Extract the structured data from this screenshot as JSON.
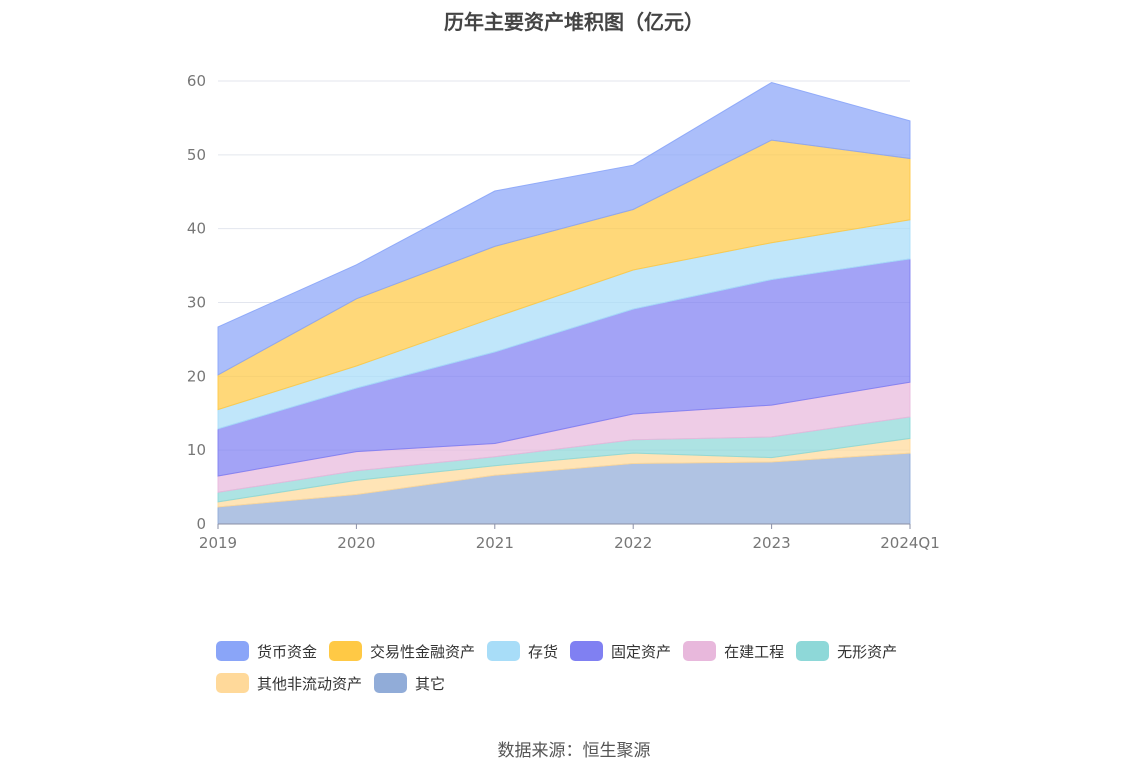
{
  "chart_data": {
    "type": "area",
    "stacked": true,
    "title": "历年主要资产堆积图（亿元）",
    "source": "数据来源：恒生聚源",
    "categories": [
      "2019",
      "2020",
      "2021",
      "2022",
      "2023",
      "2024Q1"
    ],
    "ylim": [
      0,
      60
    ],
    "yticks": [
      0,
      10,
      20,
      30,
      40,
      50,
      60
    ],
    "grid": true,
    "legend_position": "bottom",
    "series": [
      {
        "name": "其它",
        "color": "#91acd8",
        "values": [
          2.3,
          4.0,
          6.6,
          8.2,
          8.4,
          9.6
        ]
      },
      {
        "name": "其他非流动资产",
        "color": "#ffd99a",
        "values": [
          0.7,
          1.9,
          1.3,
          1.4,
          0.6,
          2.0
        ]
      },
      {
        "name": "无形资产",
        "color": "#8ed8d8",
        "values": [
          1.3,
          1.3,
          1.2,
          1.8,
          2.8,
          2.9
        ]
      },
      {
        "name": "在建工程",
        "color": "#e8b8dc",
        "values": [
          2.2,
          2.6,
          1.8,
          3.5,
          4.3,
          4.7
        ]
      },
      {
        "name": "固定资产",
        "color": "#8080f2",
        "values": [
          6.4,
          8.6,
          12.4,
          14.2,
          17.0,
          16.7
        ]
      },
      {
        "name": "存货",
        "color": "#a8ddf8",
        "values": [
          2.6,
          3.0,
          4.7,
          5.3,
          5.0,
          5.3
        ]
      },
      {
        "name": "交易性金融资产",
        "color": "#ffc945",
        "values": [
          4.7,
          9.1,
          9.6,
          8.2,
          13.9,
          8.3
        ]
      },
      {
        "name": "货币资金",
        "color": "#8aa5f8",
        "values": [
          6.5,
          4.6,
          7.5,
          6.0,
          7.8,
          5.1
        ]
      }
    ]
  },
  "legend": {
    "items": [
      {
        "label": "货币资金",
        "color": "#8aa5f8"
      },
      {
        "label": "交易性金融资产",
        "color": "#ffc945"
      },
      {
        "label": "存货",
        "color": "#a8ddf8"
      },
      {
        "label": "固定资产",
        "color": "#8080f2"
      },
      {
        "label": "在建工程",
        "color": "#e8b8dc"
      },
      {
        "label": "无形资产",
        "color": "#8ed8d8"
      },
      {
        "label": "其他非流动资产",
        "color": "#ffd99a"
      },
      {
        "label": "其它",
        "color": "#91acd8"
      }
    ]
  }
}
